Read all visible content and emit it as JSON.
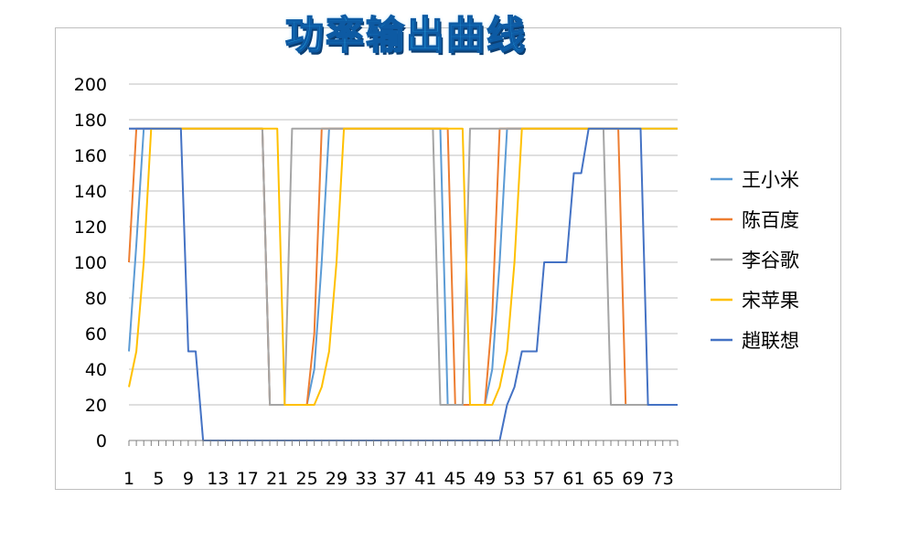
{
  "chart_data": {
    "type": "line",
    "title": "功率输出曲线",
    "xlabel": "",
    "ylabel": "",
    "ylim": [
      0,
      200
    ],
    "yticks": [
      0,
      20,
      40,
      60,
      80,
      100,
      120,
      140,
      160,
      180,
      200
    ],
    "xlim": [
      1,
      75
    ],
    "xticks": [
      1,
      5,
      9,
      13,
      17,
      21,
      25,
      29,
      33,
      37,
      41,
      45,
      49,
      53,
      57,
      61,
      65,
      69,
      73
    ],
    "grid": "horizontal",
    "legend_position": "right",
    "series": [
      {
        "name": "王小米",
        "color": "#5b9bd5",
        "points": [
          [
            1,
            50
          ],
          [
            2,
            110
          ],
          [
            3,
            175
          ],
          [
            19,
            175
          ],
          [
            20,
            20
          ],
          [
            25,
            20
          ],
          [
            26,
            40
          ],
          [
            27,
            100
          ],
          [
            28,
            175
          ],
          [
            43,
            175
          ],
          [
            44,
            20
          ],
          [
            49,
            20
          ],
          [
            50,
            40
          ],
          [
            51,
            100
          ],
          [
            52,
            175
          ],
          [
            75,
            175
          ]
        ]
      },
      {
        "name": "陈百度",
        "color": "#ed7d31",
        "points": [
          [
            1,
            100
          ],
          [
            2,
            175
          ],
          [
            19,
            175
          ],
          [
            20,
            20
          ],
          [
            25,
            20
          ],
          [
            26,
            60
          ],
          [
            27,
            175
          ],
          [
            44,
            175
          ],
          [
            45,
            20
          ],
          [
            49,
            20
          ],
          [
            50,
            70
          ],
          [
            51,
            175
          ],
          [
            67,
            175
          ],
          [
            68,
            20
          ],
          [
            75,
            20
          ]
        ]
      },
      {
        "name": "李谷歌",
        "color": "#a5a5a5",
        "points": [
          [
            1,
            175
          ],
          [
            19,
            175
          ],
          [
            20,
            20
          ],
          [
            22,
            20
          ],
          [
            23,
            175
          ],
          [
            42,
            175
          ],
          [
            43,
            20
          ],
          [
            46,
            20
          ],
          [
            47,
            175
          ],
          [
            65,
            175
          ],
          [
            66,
            20
          ],
          [
            75,
            20
          ]
        ]
      },
      {
        "name": "宋苹果",
        "color": "#ffc000",
        "points": [
          [
            1,
            30
          ],
          [
            2,
            50
          ],
          [
            3,
            100
          ],
          [
            4,
            175
          ],
          [
            21,
            175
          ],
          [
            22,
            20
          ],
          [
            26,
            20
          ],
          [
            27,
            30
          ],
          [
            28,
            50
          ],
          [
            29,
            100
          ],
          [
            30,
            175
          ],
          [
            46,
            175
          ],
          [
            47,
            20
          ],
          [
            50,
            20
          ],
          [
            51,
            30
          ],
          [
            52,
            50
          ],
          [
            53,
            100
          ],
          [
            54,
            175
          ],
          [
            75,
            175
          ]
        ]
      },
      {
        "name": "趙联想",
        "color": "#4472c4",
        "points": [
          [
            1,
            175
          ],
          [
            8,
            175
          ],
          [
            9,
            50
          ],
          [
            10,
            50
          ],
          [
            11,
            0
          ],
          [
            51,
            0
          ],
          [
            52,
            20
          ],
          [
            53,
            30
          ],
          [
            54,
            50
          ],
          [
            56,
            50
          ],
          [
            57,
            100
          ],
          [
            60,
            100
          ],
          [
            61,
            150
          ],
          [
            62,
            150
          ],
          [
            63,
            175
          ],
          [
            70,
            175
          ],
          [
            71,
            20
          ],
          [
            75,
            20
          ]
        ]
      }
    ]
  }
}
